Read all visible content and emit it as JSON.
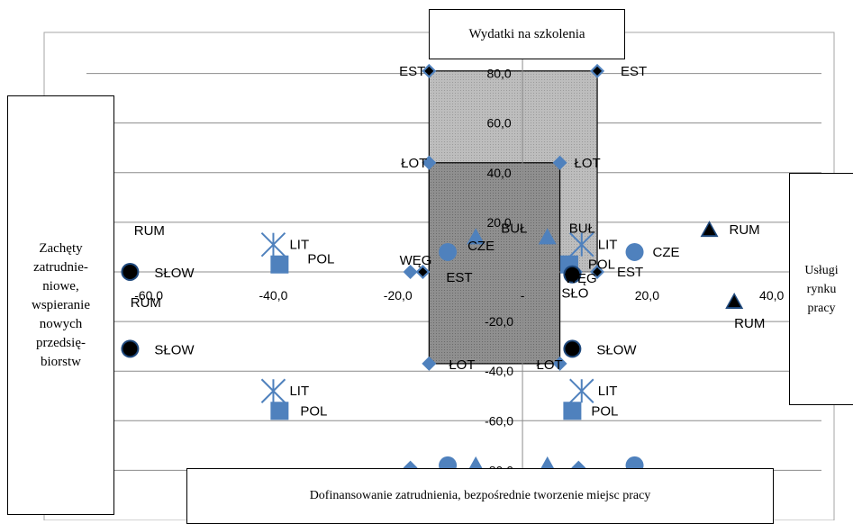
{
  "chart_data": {
    "type": "scatter",
    "title": "",
    "xlabel": "",
    "ylabel": "",
    "xlim": [
      -70,
      48
    ],
    "ylim": [
      -98,
      94
    ],
    "x_ticks": [
      -60,
      -40,
      -20,
      0,
      20,
      40
    ],
    "x_tick_labels": [
      "-60,0",
      "-40,0",
      "-20,0",
      "-",
      "20,0",
      "40,0"
    ],
    "y_ticks": [
      -80,
      -60,
      -40,
      -20,
      0,
      20,
      40,
      60,
      80
    ],
    "y_tick_labels": [
      "-80,0",
      "-60,0",
      "-40,0",
      "-20,0",
      "-",
      "20,0",
      "40,0",
      "60,0",
      "80,0"
    ],
    "gridlines": "horizontal",
    "shaded_regions": [
      {
        "x": [
          -15.0,
          12.0
        ],
        "y": [
          0,
          81.0
        ],
        "color": "#bdbdbd",
        "pattern": "dots"
      },
      {
        "x": [
          -15.0,
          6.0
        ],
        "y": [
          -37.0,
          44.0
        ],
        "color": "#8f8f8f",
        "pattern": "dots"
      }
    ],
    "quadrant_labels": {
      "top": "Wydatki na szkolenia",
      "left": "Zachęty\nzatrudnie-\nniowe,\nwspieranie\nnowych\nprzedsię-\nbiorstw",
      "right": "Usługi\nrynku\npracy",
      "bottom": "Dofinansowanie zatrudnienia, bezpośrednie tworzenie miejsc pracy"
    },
    "points": [
      {
        "label": "EST",
        "x": -15.0,
        "y": 81.0,
        "marker": "diamond",
        "color": "#4f81bd",
        "inner": "#000000"
      },
      {
        "label": "EST",
        "x": 12.0,
        "y": 81.0,
        "marker": "diamond",
        "color": "#4f81bd",
        "inner": "#000000"
      },
      {
        "label": "ŁOT",
        "x": -15.0,
        "y": 44.0,
        "marker": "diamond",
        "color": "#4f81bd"
      },
      {
        "label": "ŁOT",
        "x": 6.0,
        "y": 44.0,
        "marker": "diamond",
        "color": "#4f81bd"
      },
      {
        "label": "ŁOT",
        "x": -15.0,
        "y": -37.0,
        "marker": "diamond",
        "color": "#4f81bd"
      },
      {
        "label": "ŁOT",
        "x": 6.0,
        "y": -37.0,
        "marker": "diamond",
        "color": "#4f81bd"
      },
      {
        "label": "EST",
        "x": -16.0,
        "y": 0.0,
        "marker": "diamond",
        "color": "#4f81bd",
        "inner": "#000000"
      },
      {
        "label": "EST",
        "x": 12.0,
        "y": 0.0,
        "marker": "diamond",
        "color": "#4f81bd",
        "inner": "#000000"
      },
      {
        "label": "WĘG",
        "x": -18.0,
        "y": 0.0,
        "marker": "diamond",
        "color": "#4f81bd"
      },
      {
        "label": "WĘG",
        "x": 8.5,
        "y": 0.0,
        "marker": "diamond",
        "color": "#4f81bd"
      },
      {
        "label": "WĘG",
        "x": -18.0,
        "y": -79.0,
        "marker": "diamond",
        "color": "#4f81bd"
      },
      {
        "label": "WĘG",
        "x": 9.0,
        "y": -79.0,
        "marker": "diamond",
        "color": "#4f81bd"
      },
      {
        "label": "CZE",
        "x": -12.0,
        "y": 8.0,
        "marker": "circle",
        "color": "#4f81bd"
      },
      {
        "label": "CZE",
        "x": 18.0,
        "y": 8.0,
        "marker": "circle",
        "color": "#4f81bd"
      },
      {
        "label": "CZE",
        "x": -12.0,
        "y": -78.0,
        "marker": "circle",
        "color": "#4f81bd"
      },
      {
        "label": "CZE",
        "x": 18.0,
        "y": -78.0,
        "marker": "circle",
        "color": "#4f81bd"
      },
      {
        "label": "BUŁ",
        "x": -7.5,
        "y": 14.0,
        "marker": "triangle",
        "color": "#4f81bd"
      },
      {
        "label": "BUŁ",
        "x": 4.0,
        "y": 14.0,
        "marker": "triangle",
        "color": "#4f81bd"
      },
      {
        "label": "BUŁ",
        "x": -7.5,
        "y": -78.0,
        "marker": "triangle",
        "color": "#4f81bd"
      },
      {
        "label": "BUŁ",
        "x": 4.0,
        "y": -78.0,
        "marker": "triangle",
        "color": "#4f81bd"
      },
      {
        "label": "POL",
        "x": -39.0,
        "y": 3.0,
        "marker": "square",
        "color": "#4f81bd"
      },
      {
        "label": "POL",
        "x": 7.5,
        "y": 3.0,
        "marker": "square",
        "color": "#4f81bd"
      },
      {
        "label": "POL",
        "x": -39.0,
        "y": -56.0,
        "marker": "square",
        "color": "#4f81bd"
      },
      {
        "label": "POL",
        "x": 8.0,
        "y": -56.0,
        "marker": "square",
        "color": "#4f81bd"
      },
      {
        "label": "LIT",
        "x": -40.0,
        "y": 11.0,
        "marker": "star",
        "color": "#4f81bd"
      },
      {
        "label": "LIT",
        "x": 9.5,
        "y": 11.0,
        "marker": "star",
        "color": "#4f81bd"
      },
      {
        "label": "LIT",
        "x": -40.0,
        "y": -48.0,
        "marker": "star",
        "color": "#4f81bd"
      },
      {
        "label": "LIT",
        "x": 9.5,
        "y": -48.0,
        "marker": "star",
        "color": "#4f81bd"
      },
      {
        "label": "RUM",
        "x": -67.0,
        "y": 17.0,
        "marker": "triangle",
        "color": "#1f497d",
        "inner": "#000000"
      },
      {
        "label": "RUM",
        "x": 30.0,
        "y": 17.0,
        "marker": "triangle",
        "color": "#1f497d",
        "inner": "#000000"
      },
      {
        "label": "RUM",
        "x": -67.0,
        "y": -12.0,
        "marker": "triangle",
        "color": "#1f497d",
        "inner": "#000000"
      },
      {
        "label": "RUM",
        "x": 34.0,
        "y": -12.0,
        "marker": "triangle",
        "color": "#1f497d",
        "inner": "#000000"
      },
      {
        "label": "SŁOW",
        "x": -63.0,
        "y": 0.0,
        "marker": "circle",
        "color": "#1f497d",
        "inner": "#000000"
      },
      {
        "label": "SŁO",
        "x": 8.0,
        "y": -1.0,
        "marker": "circle",
        "color": "#1f497d",
        "inner": "#000000"
      },
      {
        "label": "SŁOW",
        "x": -63.0,
        "y": -31.0,
        "marker": "circle",
        "color": "#1f497d",
        "inner": "#000000"
      },
      {
        "label": "SŁOW",
        "x": 8.0,
        "y": -31.0,
        "marker": "circle",
        "color": "#1f497d",
        "inner": "#000000"
      }
    ],
    "grid": true,
    "legend": "none"
  }
}
